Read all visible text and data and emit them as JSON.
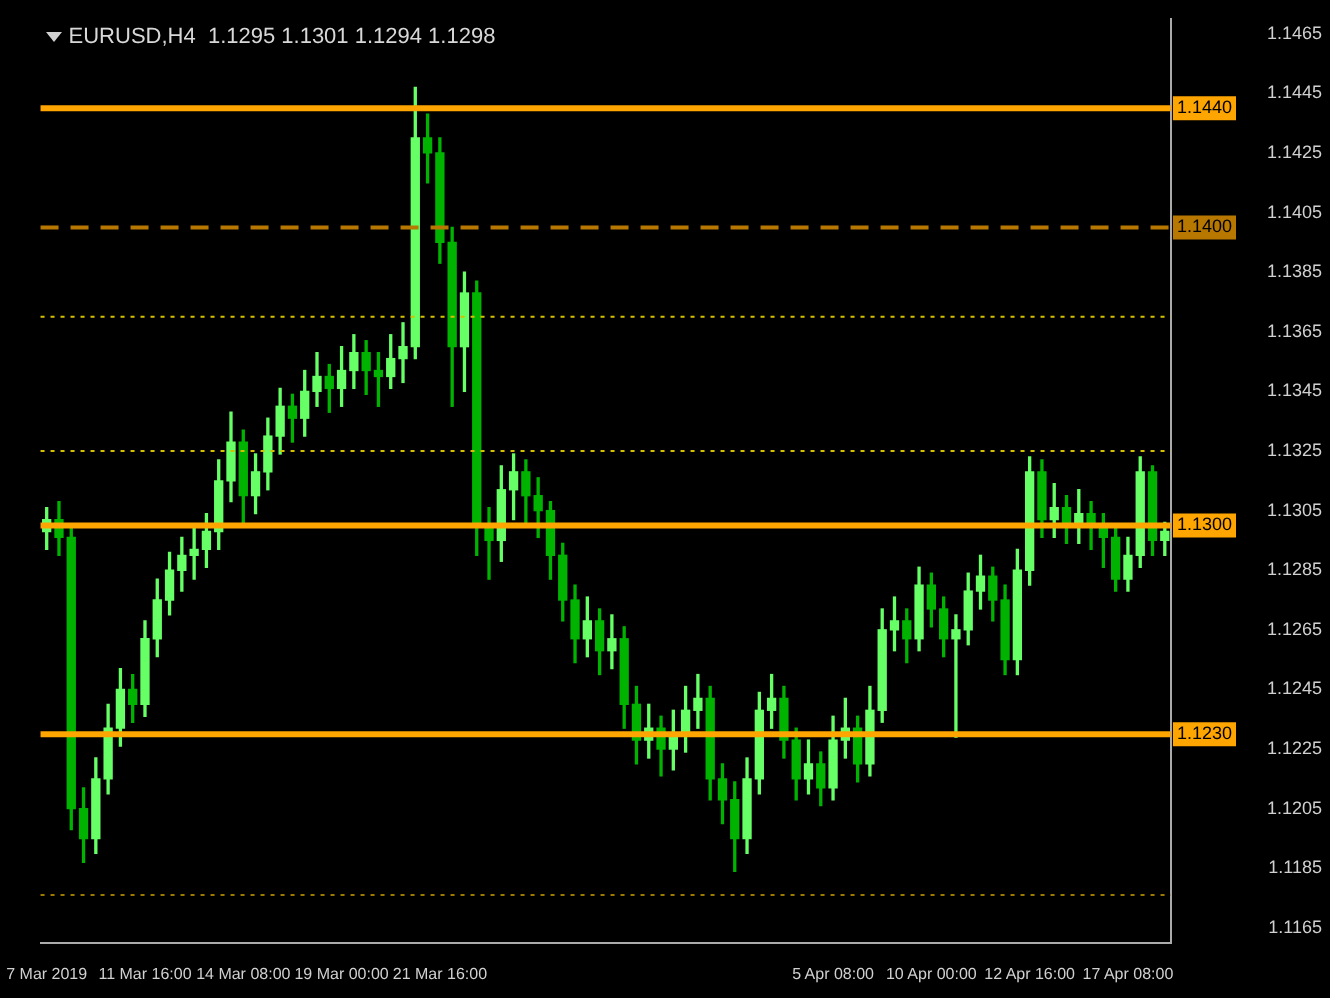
{
  "chart_data": {
    "type": "candlestick",
    "title": "EURUSD,H4  1.1295 1.1301 1.1294 1.1298",
    "colors": [
      "#66ff66",
      "#00b300",
      "#00b300",
      "#00b300",
      "#66ff66",
      "#66ff66",
      "#66ff66",
      "#00b300",
      "#66ff66",
      "#66ff66",
      "#66ff66",
      "#66ff66",
      "#66ff66",
      "#66ff66",
      "#66ff66",
      "#66ff66",
      "#00b300",
      "#66ff66",
      "#66ff66",
      "#66ff66",
      "#00b300",
      "#66ff66",
      "#66ff66",
      "#00b300",
      "#66ff66",
      "#66ff66",
      "#00b300",
      "#00b300",
      "#66ff66",
      "#66ff66",
      "#66ff66",
      "#00b300",
      "#00b300",
      "#00b300",
      "#66ff66",
      "#00b300",
      "#00b300",
      "#66ff66",
      "#66ff66",
      "#00b300",
      "#00b300",
      "#00b300",
      "#00b300",
      "#00b300",
      "#66ff66",
      "#00b300",
      "#66ff66",
      "#00b300",
      "#00b300",
      "#66ff66",
      "#00b300",
      "#66ff66",
      "#66ff66",
      "#66ff66",
      "#00b300",
      "#00b300",
      "#00b300",
      "#66ff66",
      "#66ff66",
      "#66ff66",
      "#00b300",
      "#00b300",
      "#66ff66",
      "#00b300",
      "#66ff66",
      "#66ff66",
      "#00b300",
      "#66ff66",
      "#66ff66",
      "#66ff66",
      "#00b300",
      "#66ff66",
      "#00b300",
      "#00b300",
      "#66ff66",
      "#66ff66",
      "#66ff66",
      "#00b300",
      "#00b300",
      "#66ff66",
      "#66ff66",
      "#00b300",
      "#66ff66",
      "#00b300",
      "#66ff66",
      "#00b300",
      "#00b300",
      "#00b300",
      "#66ff66",
      "#66ff66",
      "#00b300",
      "#66ff66"
    ],
    "categories": [
      "7 Mar 2019",
      null,
      null,
      null,
      null,
      null,
      null,
      null,
      "11 Mar 16:00",
      null,
      null,
      null,
      null,
      null,
      null,
      null,
      "14 Mar 08:00",
      null,
      null,
      null,
      null,
      null,
      null,
      null,
      "19 Mar 00:00",
      null,
      null,
      null,
      null,
      null,
      null,
      null,
      "21 Mar 16:00",
      null,
      null,
      null,
      null,
      null,
      null,
      null,
      null,
      null,
      null,
      null,
      null,
      null,
      null,
      null,
      null,
      null,
      null,
      null,
      null,
      null,
      null,
      null,
      null,
      null,
      null,
      null,
      null,
      null,
      null,
      null,
      "5 Apr 08:00",
      null,
      null,
      null,
      null,
      null,
      null,
      null,
      "10 Apr 00:00",
      null,
      null,
      null,
      null,
      null,
      null,
      null,
      "12 Apr 16:00",
      null,
      null,
      null,
      null,
      null,
      null,
      null,
      "17 Apr 08:00",
      null,
      null,
      null
    ],
    "ohlc": [
      [
        1.1298,
        1.1306,
        1.1292,
        1.1302
      ],
      [
        1.1302,
        1.1308,
        1.129,
        1.1296
      ],
      [
        1.1296,
        1.13,
        1.1198,
        1.1205
      ],
      [
        1.1205,
        1.1212,
        1.1187,
        1.1195
      ],
      [
        1.1195,
        1.1222,
        1.119,
        1.1215
      ],
      [
        1.1215,
        1.124,
        1.121,
        1.1232
      ],
      [
        1.1232,
        1.1252,
        1.1226,
        1.1245
      ],
      [
        1.1245,
        1.125,
        1.1234,
        1.124
      ],
      [
        1.124,
        1.1268,
        1.1236,
        1.1262
      ],
      [
        1.1262,
        1.1282,
        1.1256,
        1.1275
      ],
      [
        1.1275,
        1.1291,
        1.127,
        1.1285
      ],
      [
        1.1285,
        1.1296,
        1.1278,
        1.129
      ],
      [
        1.129,
        1.13,
        1.1282,
        1.1292
      ],
      [
        1.1292,
        1.1304,
        1.1286,
        1.1298
      ],
      [
        1.1298,
        1.1322,
        1.1292,
        1.1315
      ],
      [
        1.1315,
        1.1338,
        1.1308,
        1.1328
      ],
      [
        1.1328,
        1.1332,
        1.13,
        1.131
      ],
      [
        1.131,
        1.1324,
        1.1304,
        1.1318
      ],
      [
        1.1318,
        1.1336,
        1.1312,
        1.133
      ],
      [
        1.133,
        1.1346,
        1.1324,
        1.134
      ],
      [
        1.134,
        1.1344,
        1.1328,
        1.1336
      ],
      [
        1.1336,
        1.1352,
        1.133,
        1.1345
      ],
      [
        1.1345,
        1.1358,
        1.134,
        1.135
      ],
      [
        1.135,
        1.1354,
        1.1338,
        1.1346
      ],
      [
        1.1346,
        1.136,
        1.134,
        1.1352
      ],
      [
        1.1352,
        1.1364,
        1.1346,
        1.1358
      ],
      [
        1.1358,
        1.1362,
        1.1344,
        1.1352
      ],
      [
        1.1352,
        1.1358,
        1.134,
        1.135
      ],
      [
        1.135,
        1.1364,
        1.1346,
        1.1356
      ],
      [
        1.1356,
        1.1368,
        1.1348,
        1.136
      ],
      [
        1.136,
        1.1447,
        1.1356,
        1.143
      ],
      [
        1.143,
        1.1438,
        1.1415,
        1.1425
      ],
      [
        1.1425,
        1.143,
        1.1388,
        1.1395
      ],
      [
        1.1395,
        1.14,
        1.134,
        1.136
      ],
      [
        1.136,
        1.1385,
        1.1345,
        1.1378
      ],
      [
        1.1378,
        1.1382,
        1.129,
        1.13
      ],
      [
        1.13,
        1.1306,
        1.1282,
        1.1295
      ],
      [
        1.1295,
        1.132,
        1.1288,
        1.1312
      ],
      [
        1.1312,
        1.1324,
        1.1302,
        1.1318
      ],
      [
        1.1318,
        1.1322,
        1.13,
        1.131
      ],
      [
        1.131,
        1.1316,
        1.1296,
        1.1305
      ],
      [
        1.1305,
        1.1308,
        1.1282,
        1.129
      ],
      [
        1.129,
        1.1294,
        1.1268,
        1.1275
      ],
      [
        1.1275,
        1.128,
        1.1254,
        1.1262
      ],
      [
        1.1262,
        1.1276,
        1.1256,
        1.1268
      ],
      [
        1.1268,
        1.1272,
        1.125,
        1.1258
      ],
      [
        1.1258,
        1.127,
        1.1252,
        1.1262
      ],
      [
        1.1262,
        1.1266,
        1.1232,
        1.124
      ],
      [
        1.124,
        1.1246,
        1.122,
        1.1228
      ],
      [
        1.1228,
        1.124,
        1.1222,
        1.1232
      ],
      [
        1.1232,
        1.1236,
        1.1216,
        1.1225
      ],
      [
        1.1225,
        1.1238,
        1.1218,
        1.123
      ],
      [
        1.123,
        1.1246,
        1.1224,
        1.1238
      ],
      [
        1.1238,
        1.125,
        1.1232,
        1.1242
      ],
      [
        1.1242,
        1.1246,
        1.1208,
        1.1215
      ],
      [
        1.1215,
        1.122,
        1.12,
        1.1208
      ],
      [
        1.1208,
        1.1214,
        1.1184,
        1.1195
      ],
      [
        1.1195,
        1.1222,
        1.119,
        1.1215
      ],
      [
        1.1215,
        1.1244,
        1.121,
        1.1238
      ],
      [
        1.1238,
        1.125,
        1.1232,
        1.1242
      ],
      [
        1.1242,
        1.1246,
        1.1222,
        1.1228
      ],
      [
        1.1228,
        1.1232,
        1.1208,
        1.1215
      ],
      [
        1.1215,
        1.1228,
        1.121,
        1.122
      ],
      [
        1.122,
        1.1224,
        1.1206,
        1.1212
      ],
      [
        1.1212,
        1.1236,
        1.1208,
        1.1228
      ],
      [
        1.1228,
        1.1242,
        1.1222,
        1.1232
      ],
      [
        1.1232,
        1.1236,
        1.1214,
        1.122
      ],
      [
        1.122,
        1.1246,
        1.1216,
        1.1238
      ],
      [
        1.1238,
        1.1272,
        1.1234,
        1.1265
      ],
      [
        1.1265,
        1.1276,
        1.1258,
        1.1268
      ],
      [
        1.1268,
        1.1272,
        1.1254,
        1.1262
      ],
      [
        1.1262,
        1.1286,
        1.1258,
        1.128
      ],
      [
        1.128,
        1.1284,
        1.1266,
        1.1272
      ],
      [
        1.1272,
        1.1276,
        1.1256,
        1.1262
      ],
      [
        1.1262,
        1.127,
        1.1229,
        1.1265
      ],
      [
        1.1265,
        1.1284,
        1.126,
        1.1278
      ],
      [
        1.1278,
        1.129,
        1.1272,
        1.1283
      ],
      [
        1.1283,
        1.1286,
        1.1268,
        1.1275
      ],
      [
        1.1275,
        1.128,
        1.125,
        1.1255
      ],
      [
        1.1255,
        1.1292,
        1.125,
        1.1285
      ],
      [
        1.1285,
        1.1323,
        1.128,
        1.1318
      ],
      [
        1.1318,
        1.1322,
        1.1296,
        1.1302
      ],
      [
        1.1302,
        1.1314,
        1.1296,
        1.1306
      ],
      [
        1.1306,
        1.131,
        1.1294,
        1.13
      ],
      [
        1.13,
        1.1312,
        1.1294,
        1.1304
      ],
      [
        1.1304,
        1.1308,
        1.1292,
        1.13
      ],
      [
        1.13,
        1.1304,
        1.1286,
        1.1296
      ],
      [
        1.1296,
        1.13,
        1.1278,
        1.1282
      ],
      [
        1.1282,
        1.1296,
        1.1278,
        1.129
      ],
      [
        1.129,
        1.1323,
        1.1286,
        1.1318
      ],
      [
        1.1318,
        1.132,
        1.129,
        1.1295
      ],
      [
        1.1295,
        1.1301,
        1.129,
        1.1298
      ]
    ],
    "ylim": [
      1.116,
      1.147
    ],
    "yticks": [
      1.1165,
      1.1185,
      1.1205,
      1.1225,
      1.1245,
      1.1265,
      1.1285,
      1.1305,
      1.1325,
      1.1345,
      1.1365,
      1.1385,
      1.1405,
      1.1425,
      1.1445,
      1.1465
    ],
    "ref_lines": [
      {
        "axis": "y",
        "value": 1.144,
        "label": "1.1440",
        "color": "#ffa500",
        "line_style": "solid"
      },
      {
        "axis": "y",
        "value": 1.14,
        "label": "1.1400",
        "color": "#b87800",
        "line_style": "dashed"
      },
      {
        "axis": "y",
        "value": 1.13,
        "label": "1.1300",
        "color": "#ffa500",
        "line_style": "solid"
      },
      {
        "axis": "y",
        "value": 1.123,
        "label": "1.1230",
        "color": "#ffa500",
        "line_style": "solid"
      },
      {
        "axis": "y",
        "value": 1.137,
        "label": null,
        "color": "#d4c000",
        "line_style": "dotted"
      },
      {
        "axis": "y",
        "value": 1.1325,
        "label": null,
        "color": "#d4c000",
        "line_style": "dotted"
      },
      {
        "axis": "y",
        "value": 1.1176,
        "label": null,
        "color": "#9a7a00",
        "line_style": "dotted"
      }
    ]
  }
}
